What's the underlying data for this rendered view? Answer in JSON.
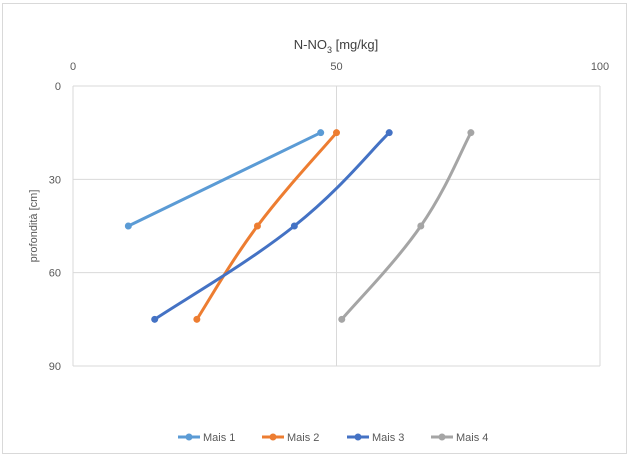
{
  "chart_data": {
    "type": "line",
    "x_title_prefix": "N-NO",
    "x_title_sub": "3",
    "x_title_suffix": " [mg/kg]",
    "ylabel": "profondità  [cm]",
    "x_axis_position": "top",
    "y_axis_inverted": true,
    "xlim": [
      0,
      100
    ],
    "ylim": [
      0,
      90
    ],
    "x_ticks": [
      0,
      50,
      100
    ],
    "y_ticks": [
      0,
      30,
      60,
      90
    ],
    "grid": true,
    "legend_position": "bottom",
    "series": [
      {
        "name": "Mais 1",
        "color": "#5b9bd5",
        "points": [
          [
            47,
            15
          ],
          [
            10.5,
            45
          ]
        ]
      },
      {
        "name": "Mais 2",
        "color": "#ed7d31",
        "points": [
          [
            50,
            15
          ],
          [
            35,
            45
          ],
          [
            23.5,
            75
          ]
        ]
      },
      {
        "name": "Mais 3",
        "color": "#4472c4",
        "points": [
          [
            60,
            15
          ],
          [
            42,
            45
          ],
          [
            15.5,
            75
          ]
        ]
      },
      {
        "name": "Mais 4",
        "color": "#a5a5a5",
        "points": [
          [
            75.5,
            15
          ],
          [
            66,
            45
          ],
          [
            51,
            75
          ]
        ]
      }
    ]
  }
}
